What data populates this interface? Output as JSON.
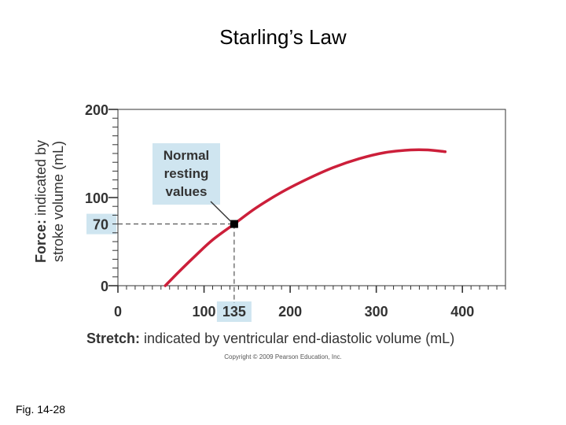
{
  "slide": {
    "title": "Starling’s Law",
    "figure_label": "Fig. 14-28"
  },
  "chart_data": {
    "type": "line",
    "xlim": [
      0,
      450
    ],
    "ylim": [
      0,
      200
    ],
    "x_ticks": [
      0,
      100,
      200,
      300,
      400
    ],
    "y_ticks": [
      0,
      100,
      200
    ],
    "y_minor_step": 10,
    "x_minor_step": 10,
    "series": [
      {
        "color": "#cc1f3a",
        "x": [
          55,
          70,
          90,
          110,
          135,
          160,
          190,
          220,
          250,
          280,
          310,
          340,
          360,
          380
        ],
        "y": [
          0,
          15,
          34,
          52,
          70,
          88,
          106,
          121,
          134,
          144,
          151,
          154,
          154,
          152
        ]
      }
    ],
    "highlight_point": {
      "x": 135,
      "y": 70
    },
    "highlight_x_label": "135",
    "highlight_y_label": "70",
    "annotation": [
      "Normal",
      "resting",
      "values"
    ],
    "xlabel_bold": "Stretch:",
    "xlabel_rest": "indicated by ventricular end-diastolic volume (mL)",
    "ylabel_bold": "Force:",
    "ylabel_rest_line1": "indicated by",
    "ylabel_rest_line2": "stroke volume (mL)",
    "copyright": "Copyright © 2009 Pearson Education, Inc.",
    "grid": false,
    "colors": {
      "curve": "#cc1f3a",
      "highlight_box": "#cfe5f0",
      "marker": "#000000"
    }
  }
}
